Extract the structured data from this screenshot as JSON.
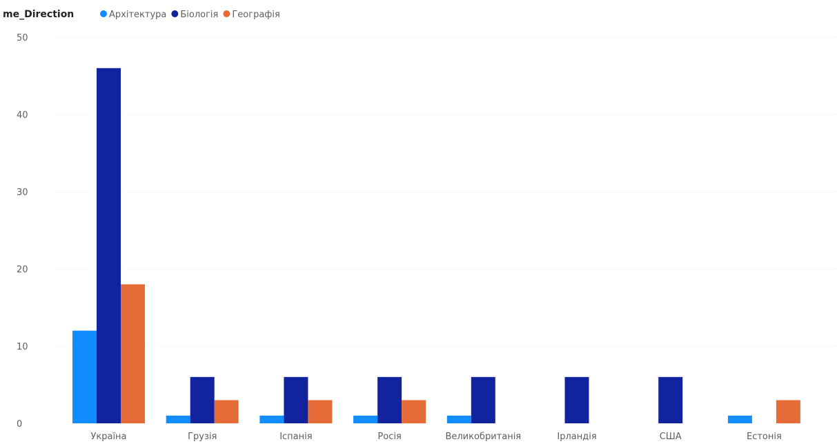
{
  "chart_data": {
    "type": "bar",
    "legend": {
      "title": "me_Direction",
      "position": "top-left"
    },
    "categories": [
      "Україна",
      "Грузія",
      "Іспанія",
      "Росія",
      "Великобританія",
      "Ірландія",
      "США",
      "Естонія"
    ],
    "series": [
      {
        "name": "Архітектура",
        "color": "#118dff",
        "values": [
          12,
          1,
          1,
          1,
          1,
          0,
          0,
          1
        ]
      },
      {
        "name": "Біологія",
        "color": "#12239e",
        "values": [
          46,
          6,
          6,
          6,
          6,
          6,
          6,
          0
        ]
      },
      {
        "name": "Географія",
        "color": "#e66c37",
        "values": [
          18,
          3,
          3,
          3,
          0,
          0,
          0,
          3
        ]
      }
    ],
    "ylim": [
      0,
      50
    ],
    "yticks": [
      "0",
      "10",
      "20",
      "30",
      "40",
      "50"
    ],
    "grid": true
  }
}
